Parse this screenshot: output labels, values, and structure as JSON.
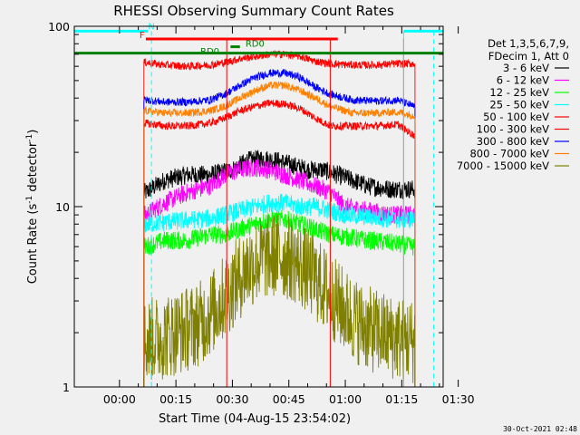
{
  "chart_data": {
    "type": "line",
    "title": "RHESSI Observing Summary Count Rates",
    "xlabel": "Start Time (04-Aug-15 23:54:02)",
    "ylabel_main": "Count Rate (s",
    "ylabel_exp": "-1",
    "ylabel_mid": " detector",
    "ylabel_exp2": "-1",
    "ylabel_end": ")",
    "y_scale": "log",
    "ylim": [
      1,
      100
    ],
    "xlim_minutes": [
      -6,
      92
    ],
    "x_ticks": [
      {
        "label": "00:00",
        "t": 6
      },
      {
        "label": "00:15",
        "t": 21
      },
      {
        "label": "00:30",
        "t": 36
      },
      {
        "label": "00:45",
        "t": 51
      },
      {
        "label": "01:00",
        "t": 66
      },
      {
        "label": "01:15",
        "t": 81
      },
      {
        "label": "01:30",
        "t": 96
      }
    ],
    "y_ticks": [
      {
        "label": "1",
        "v": 1
      },
      {
        "label": "10",
        "v": 10
      },
      {
        "label": "100",
        "v": 100
      }
    ],
    "legend_header": [
      "Det 1,3,5,6,7,9,",
      "FDecim 1, Att 0"
    ],
    "series": [
      {
        "name": "3 - 6 keV",
        "color": "#000000",
        "points": [
          [
            13,
            12
          ],
          [
            18,
            14
          ],
          [
            24,
            15
          ],
          [
            30,
            15
          ],
          [
            36,
            16
          ],
          [
            40,
            18
          ],
          [
            44,
            18.5
          ],
          [
            48,
            18
          ],
          [
            52,
            17
          ],
          [
            56,
            16
          ],
          [
            60,
            16
          ],
          [
            64,
            15
          ],
          [
            68,
            14
          ],
          [
            72,
            13
          ],
          [
            78,
            12.5
          ],
          [
            84,
            12.5
          ]
        ]
      },
      {
        "name": "6 - 12 keV",
        "color": "#ff00ff",
        "points": [
          [
            13,
            9
          ],
          [
            18,
            10.5
          ],
          [
            24,
            12
          ],
          [
            30,
            13
          ],
          [
            34,
            15
          ],
          [
            38,
            16
          ],
          [
            42,
            16.5
          ],
          [
            46,
            16
          ],
          [
            50,
            15
          ],
          [
            54,
            14
          ],
          [
            58,
            13
          ],
          [
            62,
            12
          ],
          [
            66,
            10
          ],
          [
            72,
            9.5
          ],
          [
            78,
            9
          ],
          [
            84,
            9
          ]
        ]
      },
      {
        "name": "12 - 25 keV",
        "color": "#00ff00",
        "points": [
          [
            13,
            6
          ],
          [
            18,
            6.5
          ],
          [
            24,
            6.5
          ],
          [
            30,
            7
          ],
          [
            34,
            7
          ],
          [
            38,
            7.5
          ],
          [
            42,
            8
          ],
          [
            46,
            8.5
          ],
          [
            50,
            8.5
          ],
          [
            54,
            8
          ],
          [
            58,
            7.5
          ],
          [
            62,
            7
          ],
          [
            66,
            6.8
          ],
          [
            72,
            6.5
          ],
          [
            78,
            6.3
          ],
          [
            84,
            6
          ]
        ]
      },
      {
        "name": "25 - 50 keV",
        "color": "#00ffff",
        "points": [
          [
            13,
            8
          ],
          [
            18,
            8.2
          ],
          [
            24,
            8.4
          ],
          [
            30,
            8.6
          ],
          [
            34,
            9
          ],
          [
            38,
            9.5
          ],
          [
            42,
            10
          ],
          [
            46,
            10.5
          ],
          [
            50,
            10.5
          ],
          [
            54,
            10
          ],
          [
            58,
            10
          ],
          [
            62,
            9.5
          ],
          [
            66,
            9
          ],
          [
            72,
            8.8
          ],
          [
            78,
            8.5
          ],
          [
            84,
            8.5
          ]
        ]
      },
      {
        "name": "50 - 100 keV",
        "color": "#ff0000",
        "points": [
          [
            13,
            29
          ],
          [
            18,
            28
          ],
          [
            24,
            28
          ],
          [
            30,
            29
          ],
          [
            34,
            31
          ],
          [
            38,
            34
          ],
          [
            42,
            36
          ],
          [
            46,
            37.5
          ],
          [
            50,
            37
          ],
          [
            54,
            35
          ],
          [
            58,
            31
          ],
          [
            62,
            28
          ],
          [
            68,
            28
          ],
          [
            74,
            28
          ],
          [
            80,
            28.5
          ],
          [
            84,
            25
          ]
        ]
      },
      {
        "name": "100 - 300 keV",
        "color": "#ff0000",
        "points": [
          [
            13,
            63
          ],
          [
            18,
            61
          ],
          [
            24,
            60
          ],
          [
            30,
            61
          ],
          [
            34,
            63
          ],
          [
            38,
            66
          ],
          [
            42,
            68
          ],
          [
            46,
            70
          ],
          [
            50,
            70
          ],
          [
            54,
            68
          ],
          [
            58,
            64
          ],
          [
            62,
            62
          ],
          [
            68,
            61
          ],
          [
            74,
            61
          ],
          [
            80,
            62
          ]
        ]
      },
      {
        "name": "300 - 800 keV",
        "color": "#0000ff",
        "points": [
          [
            13,
            39
          ],
          [
            18,
            38
          ],
          [
            24,
            38
          ],
          [
            30,
            39
          ],
          [
            34,
            42
          ],
          [
            38,
            47
          ],
          [
            42,
            52
          ],
          [
            46,
            55
          ],
          [
            50,
            55
          ],
          [
            54,
            52
          ],
          [
            58,
            46
          ],
          [
            62,
            42
          ],
          [
            68,
            39
          ],
          [
            74,
            38.5
          ],
          [
            80,
            39
          ],
          [
            84,
            36
          ]
        ]
      },
      {
        "name": "800 - 7000 keV",
        "color": "#ff8000",
        "points": [
          [
            13,
            34
          ],
          [
            18,
            33
          ],
          [
            24,
            33
          ],
          [
            30,
            34
          ],
          [
            34,
            36
          ],
          [
            38,
            40
          ],
          [
            42,
            44
          ],
          [
            46,
            47
          ],
          [
            50,
            47
          ],
          [
            54,
            44
          ],
          [
            58,
            40
          ],
          [
            62,
            36
          ],
          [
            68,
            33
          ],
          [
            74,
            33
          ],
          [
            80,
            33.5
          ],
          [
            84,
            32
          ]
        ]
      },
      {
        "name": "7000 - 15000 keV",
        "color": "#808000",
        "points": [
          [
            13,
            1.8
          ],
          [
            18,
            1.9
          ],
          [
            24,
            2.1
          ],
          [
            28,
            2.3
          ],
          [
            32,
            2.8
          ],
          [
            36,
            3.6
          ],
          [
            40,
            4.6
          ],
          [
            44,
            5.2
          ],
          [
            48,
            5.4
          ],
          [
            52,
            5.1
          ],
          [
            56,
            4.4
          ],
          [
            60,
            3.6
          ],
          [
            64,
            2.9
          ],
          [
            68,
            2.4
          ],
          [
            72,
            2.1
          ],
          [
            78,
            1.9
          ],
          [
            84,
            1.8
          ]
        ]
      }
    ],
    "annotations": [
      {
        "text": "N",
        "color": "#00ffff",
        "t": 14.5,
        "v": 96
      },
      {
        "text": "F",
        "color": "#ff0000",
        "t": 12,
        "v": 86
      },
      {
        "text": "RD0",
        "color": "#008000",
        "t": 42,
        "v": 77
      },
      {
        "text": "RD0",
        "color": "#008000",
        "t": 30,
        "v": 70
      }
    ],
    "flag_bars": [
      {
        "color": "#00ffff",
        "t0": -6,
        "t1": 13.5,
        "v": 94
      },
      {
        "color": "#00ffff",
        "t0": 81.5,
        "t1": 92,
        "v": 94
      },
      {
        "color": "#ff0000",
        "t0": 13,
        "t1": 64,
        "v": 85
      },
      {
        "color": "#008000",
        "t0": -6,
        "t1": 92,
        "v": 71
      },
      {
        "color": "#008000",
        "t0": 35.5,
        "t1": 38,
        "v": 77
      }
    ],
    "saa_lines": [
      {
        "color": "#00ffff",
        "t": 14.5,
        "style": "dashed"
      },
      {
        "color": "#00ffff",
        "t": 81.5,
        "style": "solid"
      },
      {
        "color": "#00ffff",
        "t": 89.5,
        "style": "dashed"
      }
    ],
    "gap_lines": [
      {
        "color": "#ff0000",
        "t": 34.5
      },
      {
        "color": "#ff0000",
        "t": 62
      },
      {
        "color": "#ff0000",
        "t": 81.5
      }
    ],
    "observation_window": [
      12.5,
      84.5
    ]
  },
  "timestamp": "30-Oct-2021 02:48"
}
